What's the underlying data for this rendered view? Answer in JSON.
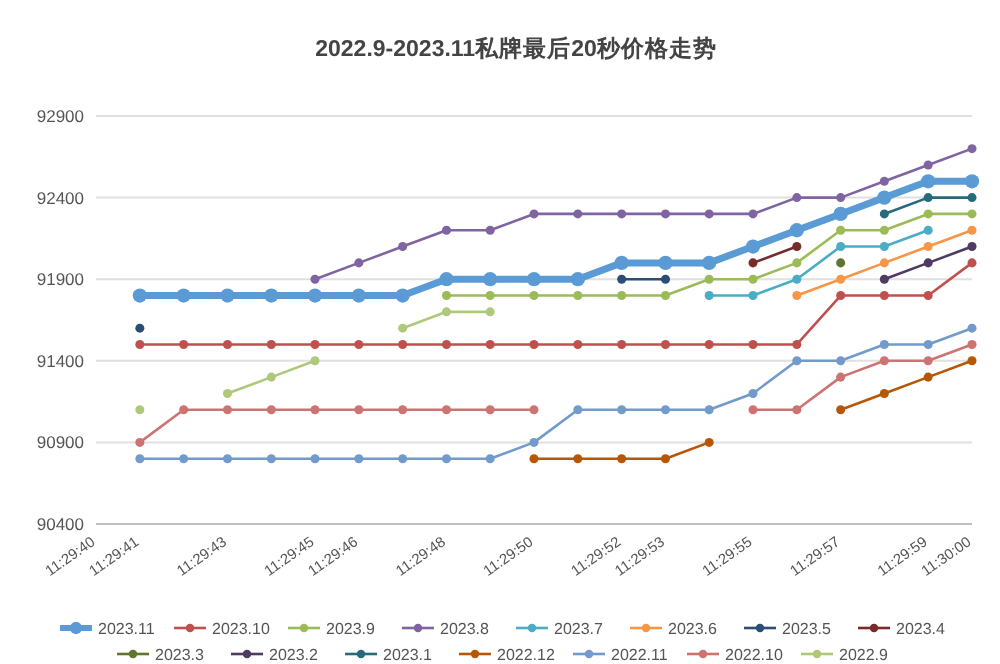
{
  "chart_data": {
    "type": "line",
    "title": "2022.9-2023.11私牌最后20秒价格走势",
    "x": [
      11.494722,
      11.495,
      11.495278,
      11.495556,
      11.495833,
      11.496111,
      11.496389,
      11.496667,
      11.496944,
      11.497222,
      11.4975,
      11.497778,
      11.498056,
      11.498333,
      11.498611,
      11.498889,
      11.499167,
      11.499444,
      11.499722,
      11.5
    ],
    "xlim": [
      11.494444,
      11.5
    ],
    "xticks": [
      {
        "value": 11.494444,
        "label": "11:29:40"
      },
      {
        "value": 11.494722,
        "label": "11:29:41"
      },
      {
        "value": 11.495278,
        "label": "11:29:43"
      },
      {
        "value": 11.495833,
        "label": "11:29:45"
      },
      {
        "value": 11.496111,
        "label": "11:29:46"
      },
      {
        "value": 11.496667,
        "label": "11:29:48"
      },
      {
        "value": 11.497222,
        "label": "11:29:50"
      },
      {
        "value": 11.497778,
        "label": "11:29:52"
      },
      {
        "value": 11.498056,
        "label": "11:29:53"
      },
      {
        "value": 11.498611,
        "label": "11:29:55"
      },
      {
        "value": 11.499167,
        "label": "11:29:57"
      },
      {
        "value": 11.499722,
        "label": "11:29:59"
      },
      {
        "value": 11.5,
        "label": "11:30:00"
      }
    ],
    "ylim": [
      90400,
      92900
    ],
    "yticks": [
      90400,
      90900,
      91400,
      91900,
      92400,
      92900
    ],
    "grid": "y",
    "legend": "bottom",
    "marker": "circle",
    "line_style": "solid",
    "series": [
      {
        "name": "2023.11",
        "color": "#5b9bd5",
        "values": [
          91800,
          91800,
          91800,
          91800,
          91800,
          91800,
          91800,
          91900,
          91900,
          91900,
          91900,
          92000,
          92000,
          92000,
          92100,
          92200,
          92300,
          92400,
          92500,
          92500
        ]
      },
      {
        "name": "2023.10",
        "color": "#c0504d",
        "values": [
          91500,
          91500,
          91500,
          91500,
          91500,
          91500,
          91500,
          91500,
          91500,
          91500,
          91500,
          91500,
          91500,
          91500,
          91500,
          91500,
          91800,
          91800,
          91800,
          92000
        ]
      },
      {
        "name": "2023.9",
        "color": "#9bbb59",
        "values": [
          null,
          null,
          null,
          null,
          null,
          null,
          null,
          91800,
          91800,
          91800,
          91800,
          91800,
          91800,
          91900,
          91900,
          92000,
          92200,
          92200,
          92300,
          92300
        ]
      },
      {
        "name": "2023.8",
        "color": "#8064a2",
        "values": [
          null,
          null,
          null,
          null,
          91900,
          92000,
          92100,
          92200,
          92200,
          92300,
          92300,
          92300,
          92300,
          92300,
          92300,
          92400,
          92400,
          92500,
          92600,
          92700
        ]
      },
      {
        "name": "2023.7",
        "color": "#4bacc6",
        "values": [
          null,
          null,
          null,
          null,
          null,
          null,
          null,
          null,
          null,
          null,
          null,
          null,
          null,
          91800,
          91800,
          91900,
          92100,
          92100,
          92200,
          null
        ]
      },
      {
        "name": "2023.6",
        "color": "#f79646",
        "values": [
          null,
          null,
          null,
          null,
          null,
          null,
          null,
          null,
          null,
          null,
          null,
          null,
          null,
          null,
          null,
          91800,
          91900,
          92000,
          92100,
          92200
        ]
      },
      {
        "name": "2023.5",
        "color": "#2c4d75",
        "values": [
          91600,
          null,
          null,
          null,
          null,
          null,
          null,
          null,
          null,
          null,
          null,
          91900,
          91900,
          null,
          null,
          null,
          null,
          null,
          null,
          null
        ]
      },
      {
        "name": "2023.4",
        "color": "#772c2a",
        "values": [
          null,
          null,
          null,
          null,
          null,
          null,
          null,
          null,
          null,
          null,
          null,
          null,
          null,
          null,
          92000,
          92100,
          null,
          null,
          null,
          null
        ]
      },
      {
        "name": "2023.3",
        "color": "#5f7530",
        "values": [
          null,
          null,
          null,
          null,
          null,
          null,
          null,
          null,
          null,
          null,
          null,
          null,
          null,
          null,
          null,
          null,
          92000,
          null,
          null,
          null
        ]
      },
      {
        "name": "2023.2",
        "color": "#4d3b62",
        "values": [
          null,
          null,
          null,
          null,
          null,
          null,
          null,
          null,
          null,
          null,
          null,
          null,
          null,
          null,
          null,
          null,
          null,
          91900,
          92000,
          92100
        ]
      },
      {
        "name": "2023.1",
        "color": "#276a7c",
        "values": [
          null,
          null,
          null,
          null,
          null,
          null,
          null,
          null,
          null,
          null,
          null,
          null,
          null,
          null,
          null,
          null,
          null,
          92300,
          92400,
          92400
        ]
      },
      {
        "name": "2022.12",
        "color": "#b65708",
        "values": [
          null,
          null,
          null,
          null,
          null,
          null,
          null,
          null,
          null,
          90800,
          90800,
          90800,
          90800,
          90900,
          null,
          null,
          91100,
          91200,
          91300,
          91400
        ]
      },
      {
        "name": "2022.11",
        "color": "#729aca",
        "values": [
          90800,
          90800,
          90800,
          90800,
          90800,
          90800,
          90800,
          90800,
          90800,
          90900,
          91100,
          91100,
          91100,
          91100,
          91200,
          91400,
          91400,
          91500,
          91500,
          91600
        ]
      },
      {
        "name": "2022.10",
        "color": "#cd7371",
        "values": [
          90900,
          91100,
          91100,
          91100,
          91100,
          91100,
          91100,
          91100,
          91100,
          91100,
          null,
          null,
          null,
          null,
          91100,
          91100,
          91300,
          91400,
          91400,
          91500
        ]
      },
      {
        "name": "2022.9",
        "color": "#afc97a",
        "values": [
          91100,
          null,
          91200,
          91300,
          91400,
          null,
          91600,
          91700,
          91700,
          null,
          null,
          null,
          null,
          null,
          null,
          null,
          null,
          null,
          null,
          null
        ]
      }
    ]
  }
}
